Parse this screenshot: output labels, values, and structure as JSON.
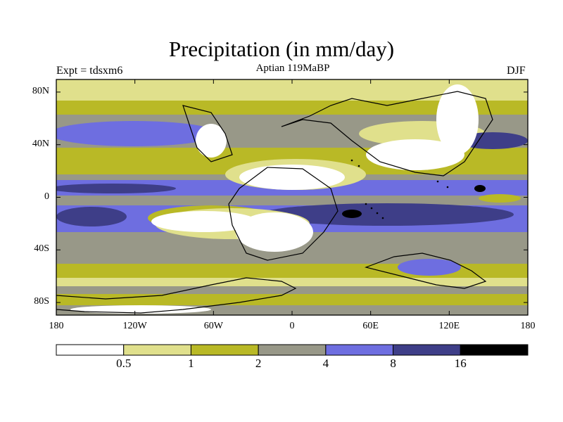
{
  "title": "Precipitation (in mm/day)",
  "experiment_label": "Expt = tdsxm6",
  "subtitle": "Aptian   119MaBP",
  "season": "DJF",
  "lat_ticks": [
    {
      "value": 80,
      "label": "80N"
    },
    {
      "value": 40,
      "label": "40N"
    },
    {
      "value": 0,
      "label": "0"
    },
    {
      "value": -40,
      "label": "40S"
    },
    {
      "value": -80,
      "label": "80S"
    }
  ],
  "lon_ticks": [
    {
      "value": -180,
      "label": "180"
    },
    {
      "value": -120,
      "label": "120W"
    },
    {
      "value": -60,
      "label": "60W"
    },
    {
      "value": 0,
      "label": "0"
    },
    {
      "value": 60,
      "label": "60E"
    },
    {
      "value": 120,
      "label": "120E"
    },
    {
      "value": 180,
      "label": "180"
    }
  ],
  "colorbar": {
    "colors": [
      "#ffffff",
      "#e0e08c",
      "#b9b926",
      "#989888",
      "#6e6ee0",
      "#3e3e88",
      "#000000"
    ],
    "labels": [
      "0.5",
      "1",
      "2",
      "4",
      "8",
      "16"
    ]
  },
  "levels": [
    "<0.5",
    "0.5-1",
    "1-2",
    "2-4",
    "4-8",
    "8-16",
    ">16"
  ]
}
